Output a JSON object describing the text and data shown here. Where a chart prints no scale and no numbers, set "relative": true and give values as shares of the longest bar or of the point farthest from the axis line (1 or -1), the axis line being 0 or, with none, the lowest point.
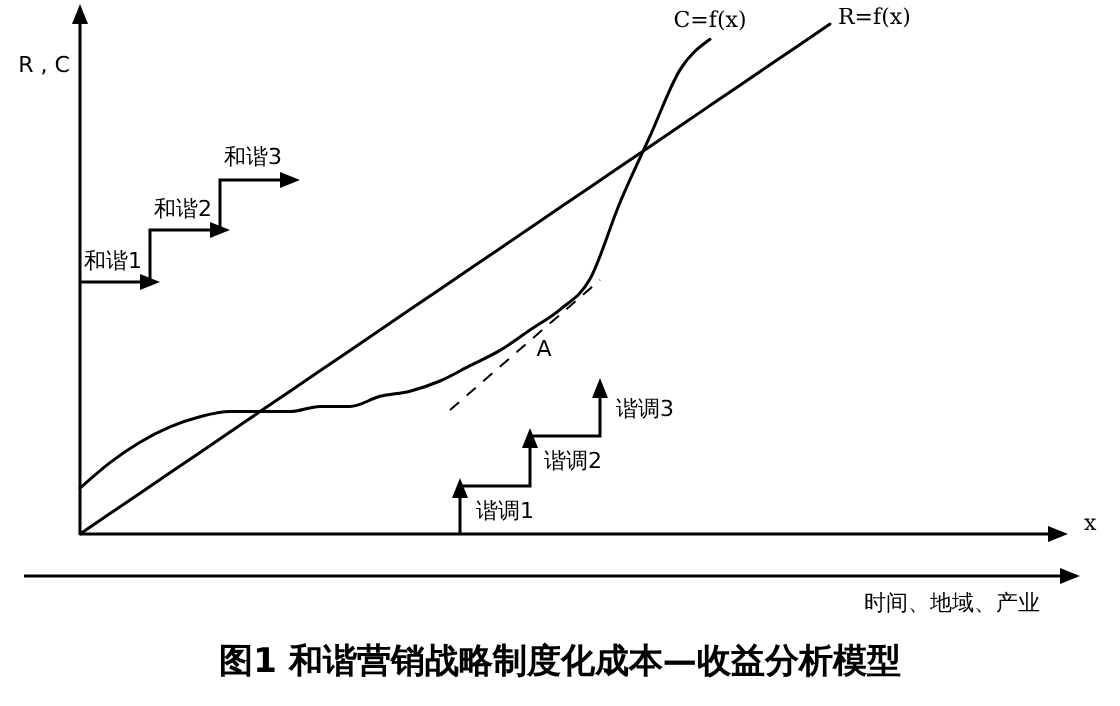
{
  "chart_data": {
    "type": "line",
    "title": "图1 和谐营销战略制度化成本—收益分析模型",
    "xlabel": "x",
    "ylabel": "R , C",
    "relative": true,
    "categories": [
      null,
      null,
      null,
      null,
      null,
      null,
      null,
      null,
      null,
      null,
      null,
      null,
      null,
      null,
      null,
      null,
      null,
      null,
      null,
      null,
      null,
      null,
      null,
      null,
      null,
      null,
      null,
      null,
      null,
      null,
      null,
      null,
      null
    ],
    "series": [
      {
        "name": "C=f(x)",
        "color": "#000000",
        "values": [
          0.09,
          0.14,
          0.18,
          0.21,
          0.23,
          0.24,
          0.24,
          0.24,
          0.25,
          0.25,
          0.27,
          0.28,
          0.3,
          0.33,
          0.36,
          0.4,
          0.44,
          0.5,
          0.65,
          0.78,
          0.91,
          0.97,
          null,
          null,
          null,
          null,
          null,
          null,
          null,
          null,
          null,
          null,
          null
        ]
      },
      {
        "name": "R=f(x)",
        "color": "#000000",
        "values": [
          0,
          0.04,
          0.08,
          0.12,
          0.16,
          0.2,
          0.24,
          0.28,
          0.32,
          0.36,
          0.4,
          0.44,
          0.48,
          0.52,
          0.56,
          0.6,
          0.64,
          0.68,
          0.72,
          0.76,
          0.8,
          0.84,
          0.88,
          0.92,
          0.96,
          1,
          null,
          null,
          null,
          null,
          null,
          null,
          null
        ]
      }
    ],
    "annotations": [
      "A",
      "和谐1",
      "和谐2",
      "和谐3",
      "谐调1",
      "谐调2",
      "谐调3",
      "时间、地域、产业"
    ]
  }
}
